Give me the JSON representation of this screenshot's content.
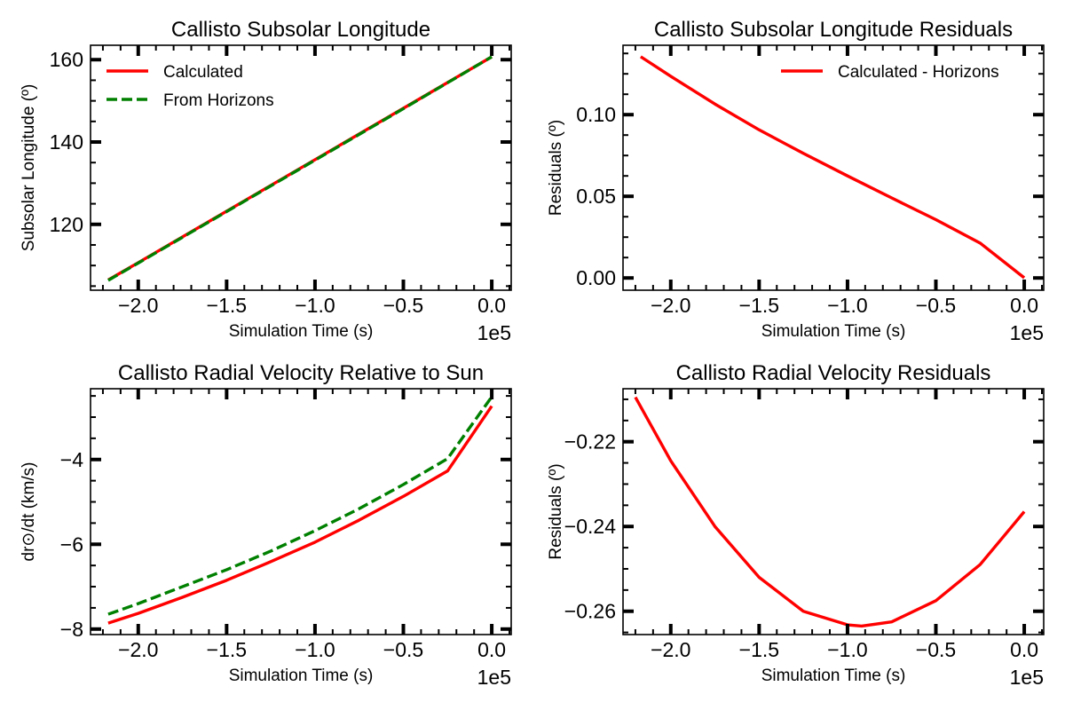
{
  "colors": {
    "calculated": "#ff0000",
    "horizons": "#008000"
  },
  "chart_data": [
    {
      "type": "line",
      "title": "Callisto Subsolar Longitude",
      "xlabel": "Simulation Time (s)",
      "ylabel": "Subsolar Longitude (º)",
      "x_offset_label": "1e5",
      "xlim": [
        -2.27,
        0.11
      ],
      "ylim": [
        104,
        163.5
      ],
      "xticks": [
        -2.0,
        -1.5,
        -1.0,
        -0.5,
        0.0
      ],
      "xtick_labels": [
        "−2.0",
        "−1.5",
        "−1.0",
        "−0.5",
        "0.0"
      ],
      "yticks": [
        120,
        140,
        160
      ],
      "ytick_labels": [
        "120",
        "140",
        "160"
      ],
      "legend": "upper-left",
      "series": [
        {
          "name": "Calculated",
          "color": "#ff0000",
          "style": "solid",
          "x": [
            -2.17,
            -2.0,
            -1.5,
            -1.0,
            -0.5,
            0.0
          ],
          "y": [
            106.5,
            110.7,
            123.2,
            135.7,
            148.2,
            160.7
          ]
        },
        {
          "name": "From Horizons",
          "color": "#008000",
          "style": "dashed",
          "x": [
            -2.17,
            -2.0,
            -1.5,
            -1.0,
            -0.5,
            0.0
          ],
          "y": [
            106.4,
            110.6,
            123.1,
            135.6,
            148.1,
            160.7
          ]
        }
      ]
    },
    {
      "type": "line",
      "title": "Callisto Subsolar Longitude Residuals",
      "xlabel": "Simulation Time (s)",
      "ylabel": "Residuals (º)",
      "x_offset_label": "1e5",
      "xlim": [
        -2.27,
        0.11
      ],
      "ylim": [
        -0.0075,
        0.1425
      ],
      "xticks": [
        -2.0,
        -1.5,
        -1.0,
        -0.5,
        0.0
      ],
      "xtick_labels": [
        "−2.0",
        "−1.5",
        "−1.0",
        "−0.5",
        "0.0"
      ],
      "yticks": [
        0.0,
        0.05,
        0.1
      ],
      "ytick_labels": [
        "0.00",
        "0.05",
        "0.10"
      ],
      "legend": "upper-right",
      "series": [
        {
          "name": "Calculated - Horizons",
          "color": "#ff0000",
          "style": "solid",
          "x": [
            -2.17,
            -2.0,
            -1.75,
            -1.5,
            -1.25,
            -1.0,
            -0.75,
            -0.5,
            -0.25,
            0.0
          ],
          "y": [
            0.1355,
            0.1235,
            0.1065,
            0.0907,
            0.0763,
            0.0625,
            0.049,
            0.0357,
            0.0214,
            0.0001
          ]
        }
      ]
    },
    {
      "type": "line",
      "title": "Callisto Radial Velocity Relative to Sun",
      "xlabel": "Simulation Time (s)",
      "ylabel": "dr⊙/dt (km/s)",
      "x_offset_label": "1e5",
      "xlim": [
        -2.27,
        0.11
      ],
      "ylim": [
        -8.13,
        -2.33
      ],
      "xticks": [
        -2.0,
        -1.5,
        -1.0,
        -0.5,
        0.0
      ],
      "xtick_labels": [
        "−2.0",
        "−1.5",
        "−1.0",
        "−0.5",
        "0.0"
      ],
      "yticks": [
        -8,
        -6,
        -4
      ],
      "ytick_labels": [
        "−8",
        "−6",
        "−4"
      ],
      "legend": "none",
      "series": [
        {
          "color": "#ff0000",
          "style": "solid",
          "x": [
            -2.17,
            -2.0,
            -1.75,
            -1.5,
            -1.25,
            -1.0,
            -0.75,
            -0.5,
            -0.25,
            0.0
          ],
          "y": [
            -7.86,
            -7.63,
            -7.25,
            -6.85,
            -6.41,
            -5.95,
            -5.43,
            -4.87,
            -4.27,
            -2.74
          ]
        },
        {
          "color": "#008000",
          "style": "dashed",
          "x": [
            -2.17,
            -2.0,
            -1.75,
            -1.5,
            -1.25,
            -1.0,
            -0.75,
            -0.5,
            -0.25,
            0.0
          ],
          "y": [
            -7.65,
            -7.4,
            -7.0,
            -6.6,
            -6.16,
            -5.68,
            -5.16,
            -4.59,
            -3.98,
            -2.52
          ]
        }
      ]
    },
    {
      "type": "line",
      "title": "Callisto Radial Velocity Residuals",
      "xlabel": "Simulation Time (s)",
      "ylabel": "Residuals (º)",
      "x_offset_label": "1e5",
      "xlim": [
        -2.27,
        0.11
      ],
      "ylim": [
        -0.2655,
        -0.2075
      ],
      "xticks": [
        -2.0,
        -1.5,
        -1.0,
        -0.5,
        0.0
      ],
      "xtick_labels": [
        "−2.0",
        "−1.5",
        "−1.0",
        "−0.5",
        "0.0"
      ],
      "yticks": [
        -0.26,
        -0.24,
        -0.22
      ],
      "ytick_labels": [
        "−0.26",
        "−0.24",
        "−0.22"
      ],
      "legend": "none",
      "series": [
        {
          "color": "#ff0000",
          "style": "solid",
          "x": [
            -2.2,
            -2.0,
            -1.75,
            -1.5,
            -1.25,
            -1.0,
            -0.92,
            -0.75,
            -0.5,
            -0.25,
            0.0
          ],
          "y": [
            -0.2095,
            -0.2245,
            -0.24,
            -0.252,
            -0.26,
            -0.2632,
            -0.2635,
            -0.2625,
            -0.2575,
            -0.249,
            -0.2365
          ]
        }
      ]
    }
  ]
}
